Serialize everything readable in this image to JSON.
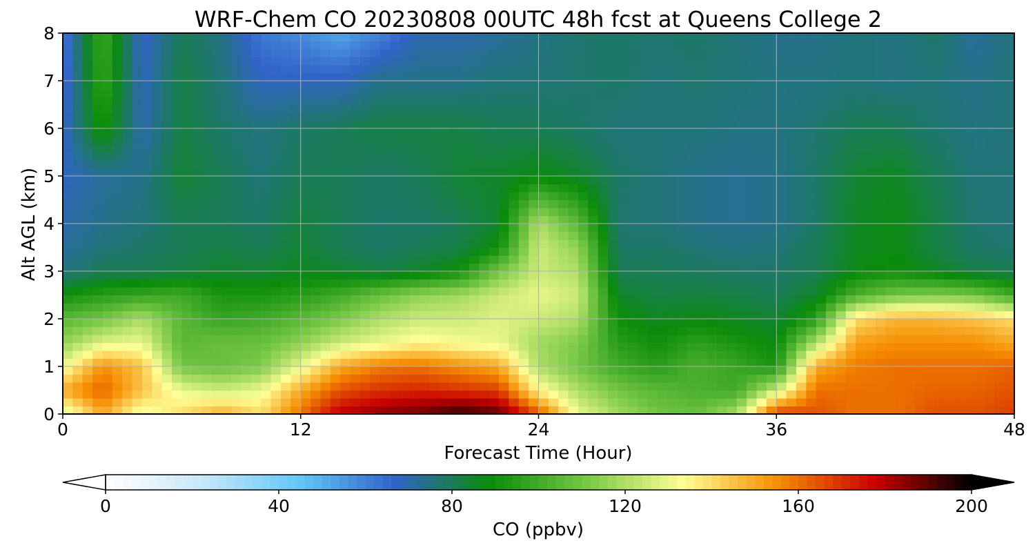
{
  "chart_data": {
    "type": "heatmap",
    "title": "WRF-Chem CO  20230808 00UTC 48h fcst at Queens College 2",
    "xlabel": "Forecast Time (Hour)",
    "ylabel": "Alt AGL (km)",
    "xlim": [
      0,
      48
    ],
    "ylim": [
      0,
      8
    ],
    "xticks": [
      "0",
      "12",
      "24",
      "36",
      "48"
    ],
    "yticks": [
      "0",
      "1",
      "2",
      "3",
      "4",
      "5",
      "6",
      "7",
      "8"
    ],
    "grid": true,
    "colorbar": {
      "label": "CO  (ppbv)",
      "range": [
        0,
        200
      ],
      "ticks": [
        "0",
        "40",
        "80",
        "120",
        "160",
        "200"
      ],
      "extend": "both",
      "colors": [
        "#ffffff",
        "#c8e8f8",
        "#64c8f8",
        "#3264c8",
        "#0a8c0a",
        "#78c846",
        "#ffff96",
        "#f58c00",
        "#c80000",
        "#000000"
      ]
    },
    "x": [
      0,
      2,
      4,
      6,
      8,
      10,
      12,
      14,
      16,
      18,
      20,
      22,
      24,
      26,
      28,
      30,
      32,
      34,
      36,
      38,
      40,
      42,
      44,
      46,
      48
    ],
    "y": [
      0,
      0.5,
      1,
      1.5,
      2,
      2.5,
      3,
      3.5,
      4,
      5,
      6,
      7,
      8
    ],
    "z": [
      [
        125,
        150,
        130,
        140,
        150,
        140,
        160,
        180,
        185,
        188,
        195,
        190,
        165,
        130,
        118,
        110,
        108,
        120,
        170,
        165,
        160,
        160,
        165,
        165,
        168
      ],
      [
        150,
        162,
        145,
        130,
        125,
        130,
        150,
        165,
        170,
        172,
        170,
        168,
        135,
        120,
        110,
        105,
        102,
        100,
        125,
        160,
        160,
        160,
        162,
        162,
        165
      ],
      [
        130,
        155,
        145,
        110,
        108,
        112,
        130,
        150,
        158,
        160,
        155,
        150,
        120,
        110,
        100,
        95,
        102,
        98,
        92,
        150,
        158,
        160,
        160,
        160,
        162
      ],
      [
        115,
        128,
        130,
        105,
        108,
        108,
        115,
        125,
        130,
        135,
        132,
        130,
        118,
        112,
        95,
        90,
        96,
        92,
        88,
        120,
        152,
        155,
        155,
        155,
        150
      ],
      [
        105,
        110,
        120,
        105,
        98,
        100,
        105,
        112,
        120,
        125,
        125,
        128,
        125,
        120,
        90,
        86,
        88,
        86,
        84,
        95,
        140,
        148,
        148,
        145,
        140
      ],
      [
        90,
        95,
        98,
        100,
        92,
        92,
        95,
        100,
        108,
        115,
        118,
        125,
        130,
        125,
        85,
        82,
        83,
        82,
        80,
        85,
        102,
        110,
        112,
        110,
        100
      ],
      [
        75,
        80,
        80,
        82,
        85,
        84,
        86,
        85,
        82,
        85,
        90,
        110,
        125,
        120,
        80,
        80,
        79,
        78,
        78,
        80,
        88,
        90,
        86,
        82,
        80
      ],
      [
        72,
        76,
        78,
        80,
        82,
        80,
        84,
        80,
        78,
        80,
        82,
        90,
        125,
        115,
        78,
        78,
        76,
        75,
        76,
        80,
        86,
        88,
        82,
        78,
        77
      ],
      [
        70,
        74,
        76,
        80,
        80,
        78,
        83,
        80,
        78,
        78,
        80,
        85,
        120,
        105,
        77,
        76,
        74,
        73,
        74,
        78,
        86,
        88,
        82,
        77,
        76
      ],
      [
        68,
        72,
        74,
        84,
        80,
        76,
        80,
        80,
        78,
        80,
        84,
        85,
        88,
        85,
        78,
        76,
        74,
        73,
        74,
        78,
        84,
        86,
        80,
        76,
        76
      ],
      [
        66,
        92,
        70,
        82,
        78,
        75,
        78,
        80,
        82,
        82,
        82,
        80,
        80,
        78,
        76,
        76,
        76,
        75,
        75,
        77,
        80,
        80,
        77,
        75,
        76
      ],
      [
        62,
        98,
        68,
        82,
        76,
        68,
        68,
        68,
        74,
        74,
        74,
        76,
        76,
        77,
        78,
        76,
        77,
        76,
        75,
        75,
        76,
        75,
        76,
        74,
        76
      ],
      [
        60,
        100,
        66,
        80,
        75,
        62,
        58,
        52,
        60,
        70,
        70,
        72,
        75,
        77,
        78,
        77,
        78,
        76,
        74,
        74,
        76,
        75,
        78,
        72,
        76
      ]
    ]
  }
}
